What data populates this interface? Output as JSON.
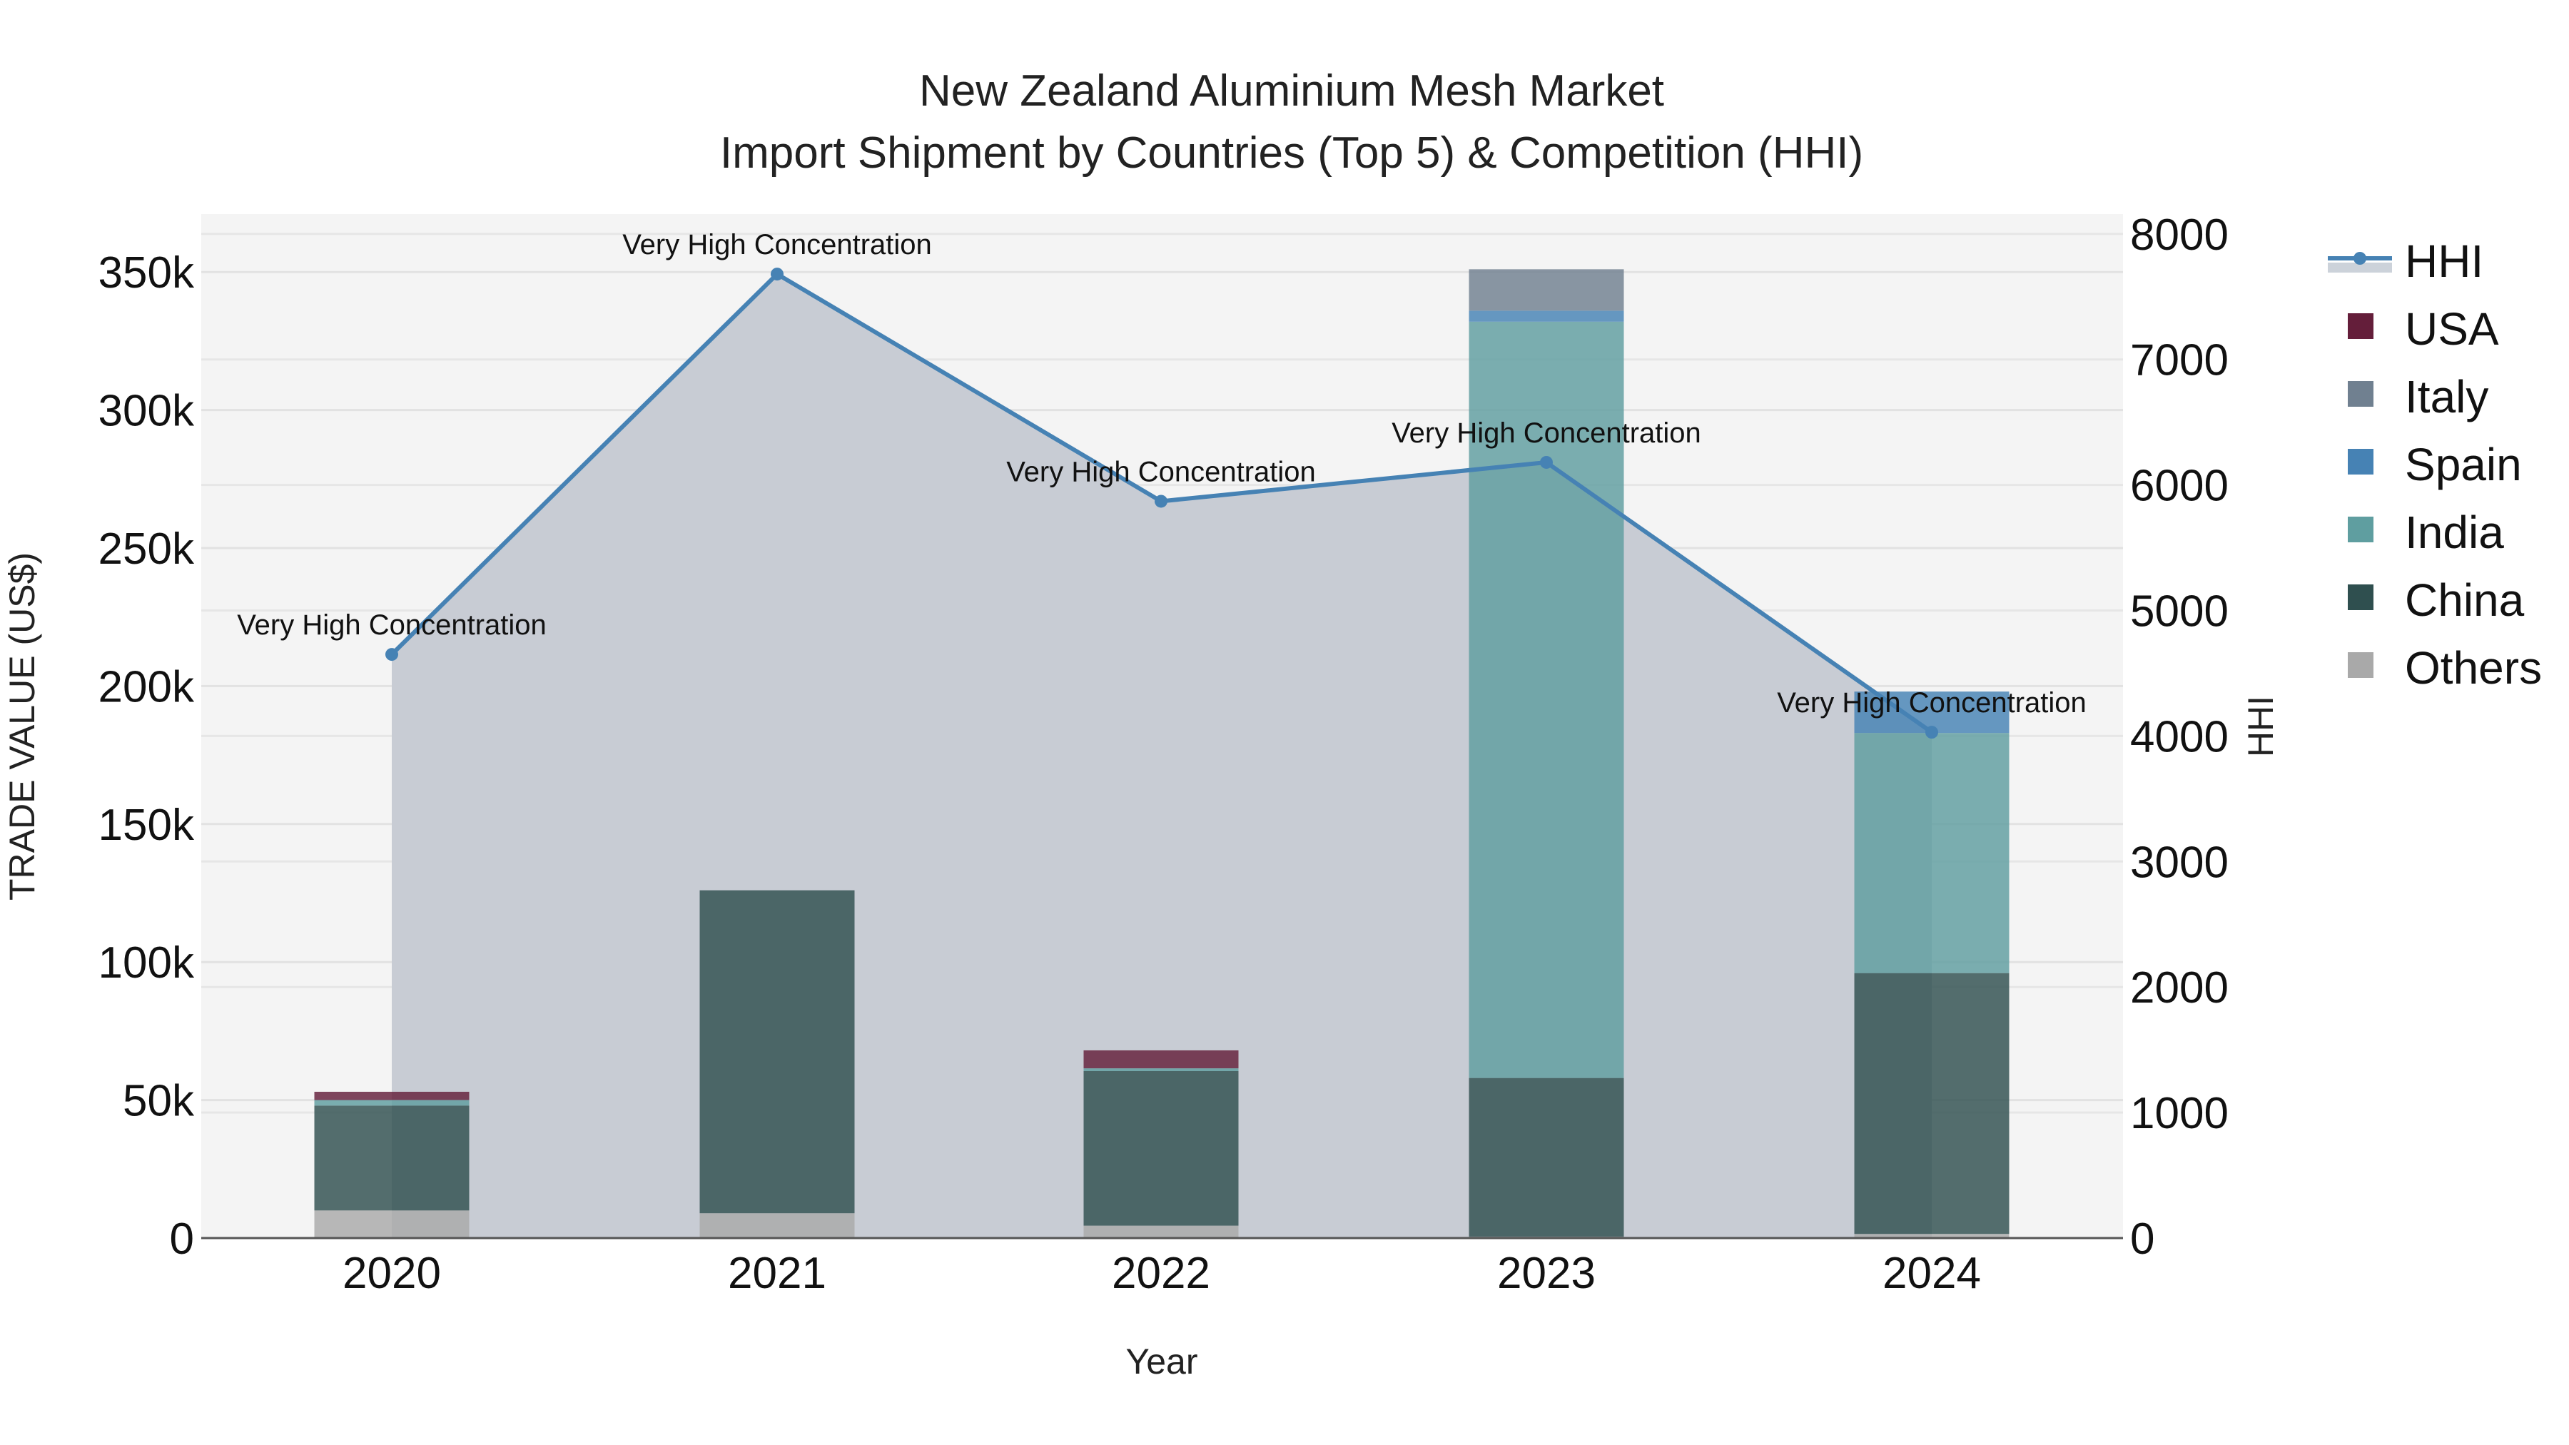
{
  "chart_data": {
    "type": "bar",
    "subtype": "stacked-bar-with-line-area",
    "title": "New Zealand Aluminium Mesh Market",
    "subtitle": "Import Shipment by Countries (Top 5) & Competition (HHI)",
    "xlabel": "Year",
    "ylabel": "TRADE VALUE (US$)",
    "y2label": "HHI",
    "categories": [
      "2020",
      "2021",
      "2022",
      "2023",
      "2024"
    ],
    "ylim": [
      0,
      370000
    ],
    "y_ticks": [
      0,
      50000,
      100000,
      150000,
      200000,
      250000,
      300000,
      350000
    ],
    "y_tick_labels": [
      "0",
      "50k",
      "100k",
      "150k",
      "200k",
      "250k",
      "300k",
      "350k"
    ],
    "y2lim": [
      0,
      8200
    ],
    "y2_ticks": [
      0,
      1000,
      2000,
      3000,
      4000,
      5000,
      6000,
      7000,
      8000
    ],
    "y2_tick_labels": [
      "0",
      "1000",
      "2000",
      "3000",
      "4000",
      "5000",
      "6000",
      "7000",
      "8000"
    ],
    "grid": true,
    "legend_position": "right",
    "series": [
      {
        "name": "Others",
        "color": "#a9a9a9",
        "values": [
          10000,
          9000,
          4500,
          500,
          1500
        ]
      },
      {
        "name": "China",
        "color": "#2f4f4f",
        "values": [
          38000,
          117000,
          56000,
          57500,
          94500
        ]
      },
      {
        "name": "India",
        "color": "#5f9ea0",
        "values": [
          2000,
          0,
          1000,
          274000,
          87000
        ]
      },
      {
        "name": "Spain",
        "color": "#4682b4",
        "values": [
          0,
          0,
          0,
          4000,
          15000
        ]
      },
      {
        "name": "Italy",
        "color": "#708090",
        "values": [
          0,
          0,
          0,
          15000,
          0
        ]
      },
      {
        "name": "USA",
        "color": "#641e3a",
        "values": [
          3000,
          0,
          6500,
          0,
          0
        ]
      }
    ],
    "line_series": {
      "name": "HHI",
      "axis": "y2",
      "color": "#4682b4",
      "fill_color": "rgba(176,184,198,0.6)",
      "values": [
        4650,
        7680,
        5870,
        6180,
        4030
      ],
      "annotations": [
        "Very High Concentration",
        "Very High Concentration",
        "Very High Concentration",
        "Very High Concentration",
        "Very High Concentration"
      ]
    },
    "legend": [
      "HHI",
      "USA",
      "Italy",
      "Spain",
      "India",
      "China",
      "Others"
    ]
  }
}
